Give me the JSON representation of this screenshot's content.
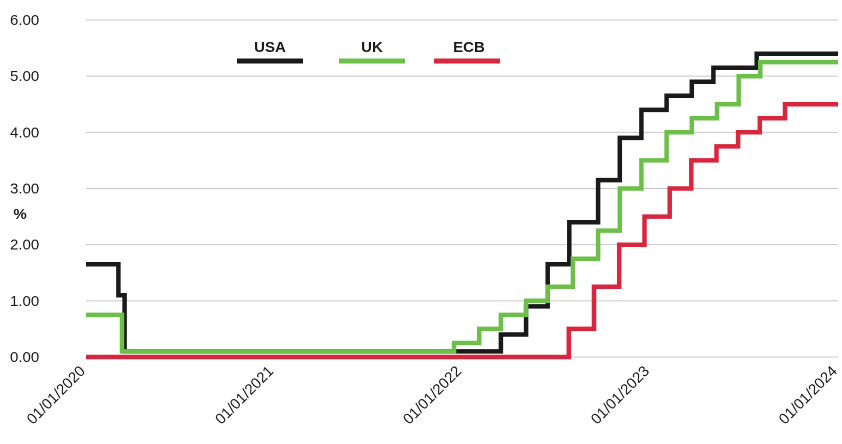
{
  "chart_data": {
    "type": "line",
    "step": true,
    "ylabel": "%",
    "xlabel": "",
    "ylim": [
      0,
      6
    ],
    "xlim": [
      "2020-01-01",
      "2024-01-01"
    ],
    "grid": true,
    "legend_position": "top",
    "y_ticks": [
      "0.00",
      "1.00",
      "2.00",
      "3.00",
      "4.00",
      "5.00",
      "6.00"
    ],
    "x_ticks": [
      {
        "date": "2020-01-01",
        "label": "01/01/2020"
      },
      {
        "date": "2021-01-01",
        "label": "01/01/2021"
      },
      {
        "date": "2022-01-01",
        "label": "01/01/2022"
      },
      {
        "date": "2023-01-01",
        "label": "01/01/2023"
      },
      {
        "date": "2024-01-01",
        "label": "01/01/2024"
      }
    ],
    "series": [
      {
        "name": "USA",
        "color": "#1a1a1a",
        "points": [
          {
            "x": "2020-01-01",
            "y": 1.65
          },
          {
            "x": "2020-03-04",
            "y": 1.1
          },
          {
            "x": "2020-03-16",
            "y": 0.1
          },
          {
            "x": "2022-03-17",
            "y": 0.4
          },
          {
            "x": "2022-05-05",
            "y": 0.9
          },
          {
            "x": "2022-06-16",
            "y": 1.65
          },
          {
            "x": "2022-07-28",
            "y": 2.4
          },
          {
            "x": "2022-09-22",
            "y": 3.15
          },
          {
            "x": "2022-11-03",
            "y": 3.9
          },
          {
            "x": "2022-12-15",
            "y": 4.4
          },
          {
            "x": "2023-02-02",
            "y": 4.65
          },
          {
            "x": "2023-03-23",
            "y": 4.9
          },
          {
            "x": "2023-05-04",
            "y": 5.15
          },
          {
            "x": "2023-07-27",
            "y": 5.4
          },
          {
            "x": "2024-01-01",
            "y": 5.4
          }
        ]
      },
      {
        "name": "UK",
        "color": "#6cc04a",
        "points": [
          {
            "x": "2020-01-01",
            "y": 0.75
          },
          {
            "x": "2020-03-11",
            "y": 0.1
          },
          {
            "x": "2021-12-16",
            "y": 0.25
          },
          {
            "x": "2022-02-03",
            "y": 0.5
          },
          {
            "x": "2022-03-17",
            "y": 0.75
          },
          {
            "x": "2022-05-05",
            "y": 1.0
          },
          {
            "x": "2022-06-16",
            "y": 1.25
          },
          {
            "x": "2022-08-04",
            "y": 1.75
          },
          {
            "x": "2022-09-22",
            "y": 2.25
          },
          {
            "x": "2022-11-03",
            "y": 3.0
          },
          {
            "x": "2022-12-15",
            "y": 3.5
          },
          {
            "x": "2023-02-02",
            "y": 4.0
          },
          {
            "x": "2023-03-23",
            "y": 4.25
          },
          {
            "x": "2023-05-11",
            "y": 4.5
          },
          {
            "x": "2023-06-22",
            "y": 5.0
          },
          {
            "x": "2023-08-03",
            "y": 5.25
          },
          {
            "x": "2024-01-01",
            "y": 5.25
          }
        ]
      },
      {
        "name": "ECB",
        "color": "#d7263d",
        "points": [
          {
            "x": "2020-01-01",
            "y": 0.0
          },
          {
            "x": "2022-07-27",
            "y": 0.5
          },
          {
            "x": "2022-09-14",
            "y": 1.25
          },
          {
            "x": "2022-11-02",
            "y": 2.0
          },
          {
            "x": "2022-12-21",
            "y": 2.5
          },
          {
            "x": "2023-02-08",
            "y": 3.0
          },
          {
            "x": "2023-03-22",
            "y": 3.5
          },
          {
            "x": "2023-05-10",
            "y": 3.75
          },
          {
            "x": "2023-06-21",
            "y": 4.0
          },
          {
            "x": "2023-08-02",
            "y": 4.25
          },
          {
            "x": "2023-09-20",
            "y": 4.5
          },
          {
            "x": "2024-01-01",
            "y": 4.5
          }
        ]
      }
    ]
  }
}
